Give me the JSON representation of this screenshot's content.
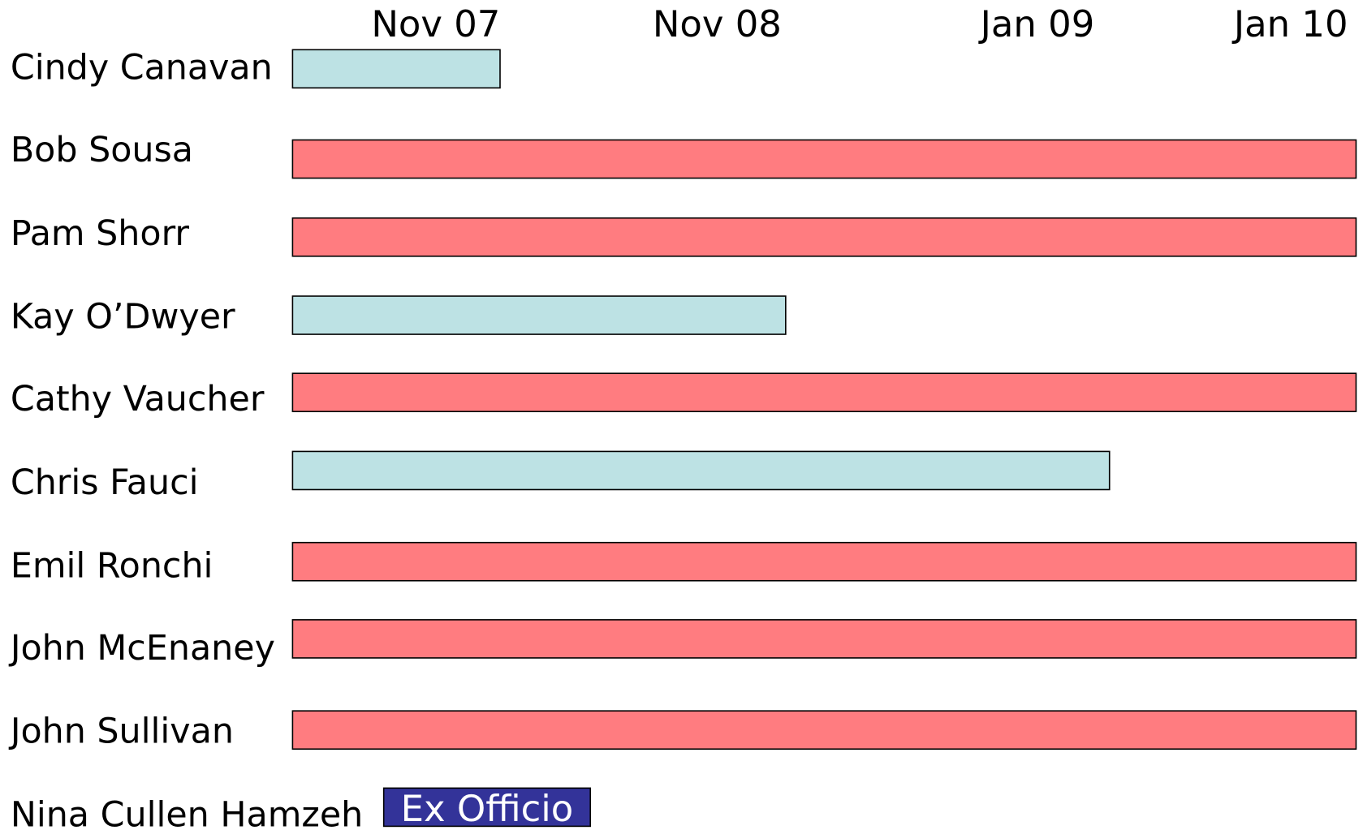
{
  "timeline": [
    "Nov 07",
    "Nov 08",
    "Jan 09",
    "Jan 10"
  ],
  "members": [
    "Cindy Canavan",
    "Bob Sousa",
    "Pam Shorr",
    "Kay O’Dwyer",
    "Cathy Vaucher",
    "Chris Fauci",
    "Emil Ronchi",
    "John McEnaney",
    "John Sullivan",
    "Nina Cullen Hamzeh"
  ],
  "ex_officio_label": "Ex Officio"
}
